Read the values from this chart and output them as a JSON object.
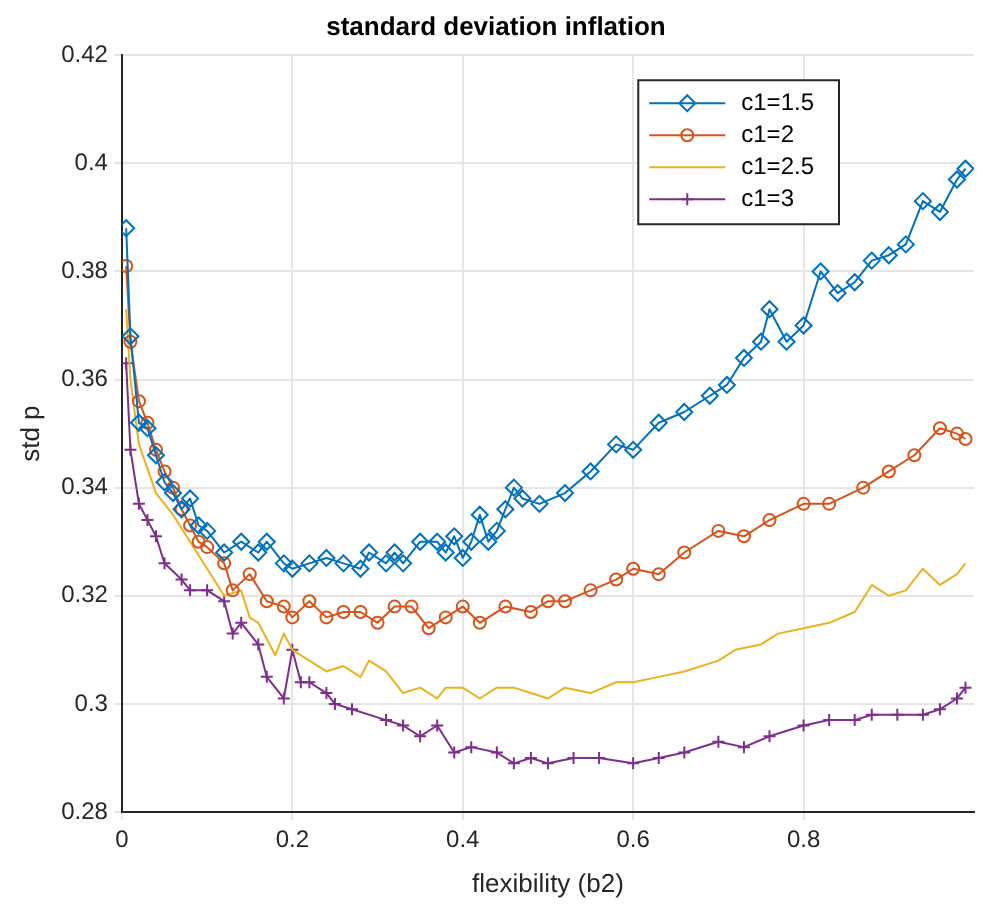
{
  "chart_data": {
    "type": "line",
    "title": "standard deviation inflation",
    "xlabel": "flexibility (b2)",
    "ylabel": "std p",
    "xlim": [
      0,
      1
    ],
    "xticks": [
      0,
      0.2,
      0.4,
      0.6,
      0.8
    ],
    "ylim": [
      0.28,
      0.42
    ],
    "yticks": [
      0.28,
      0.3,
      0.32,
      0.34,
      0.36,
      0.38,
      0.4,
      0.42
    ],
    "grid": true,
    "legend": "top right",
    "series": [
      {
        "name": "c1=1.5",
        "color": "#0072bd",
        "marker": "diamond",
        "x": [
          0.005,
          0.01,
          0.02,
          0.03,
          0.04,
          0.05,
          0.06,
          0.07,
          0.08,
          0.09,
          0.1,
          0.12,
          0.14,
          0.16,
          0.17,
          0.19,
          0.2,
          0.22,
          0.24,
          0.26,
          0.28,
          0.29,
          0.31,
          0.32,
          0.33,
          0.35,
          0.37,
          0.38,
          0.39,
          0.4,
          0.41,
          0.42,
          0.43,
          0.44,
          0.45,
          0.46,
          0.47,
          0.49,
          0.52,
          0.55,
          0.58,
          0.6,
          0.63,
          0.66,
          0.69,
          0.71,
          0.73,
          0.75,
          0.76,
          0.78,
          0.8,
          0.82,
          0.84,
          0.86,
          0.88,
          0.9,
          0.92,
          0.94,
          0.96,
          0.98,
          0.99
        ],
        "values": [
          0.388,
          0.368,
          0.352,
          0.351,
          0.346,
          0.341,
          0.339,
          0.336,
          0.338,
          0.333,
          0.332,
          0.328,
          0.33,
          0.328,
          0.33,
          0.326,
          0.325,
          0.326,
          0.327,
          0.326,
          0.325,
          0.328,
          0.326,
          0.328,
          0.326,
          0.33,
          0.33,
          0.328,
          0.331,
          0.327,
          0.33,
          0.335,
          0.33,
          0.332,
          0.336,
          0.34,
          0.338,
          0.337,
          0.339,
          0.343,
          0.348,
          0.347,
          0.352,
          0.354,
          0.357,
          0.359,
          0.364,
          0.367,
          0.373,
          0.367,
          0.37,
          0.38,
          0.376,
          0.378,
          0.382,
          0.383,
          0.385,
          0.393,
          0.391,
          0.397,
          0.399
        ]
      },
      {
        "name": "c1=2",
        "color": "#d95319",
        "marker": "circle",
        "x": [
          0.005,
          0.01,
          0.02,
          0.03,
          0.04,
          0.05,
          0.06,
          0.07,
          0.08,
          0.09,
          0.1,
          0.12,
          0.13,
          0.15,
          0.17,
          0.19,
          0.2,
          0.22,
          0.24,
          0.26,
          0.28,
          0.3,
          0.32,
          0.34,
          0.36,
          0.38,
          0.4,
          0.42,
          0.45,
          0.48,
          0.5,
          0.52,
          0.55,
          0.58,
          0.6,
          0.63,
          0.66,
          0.7,
          0.73,
          0.76,
          0.8,
          0.83,
          0.87,
          0.9,
          0.93,
          0.96,
          0.98,
          0.99
        ],
        "values": [
          0.381,
          0.367,
          0.356,
          0.352,
          0.347,
          0.343,
          0.34,
          0.336,
          0.333,
          0.33,
          0.329,
          0.326,
          0.321,
          0.324,
          0.319,
          0.318,
          0.316,
          0.319,
          0.316,
          0.317,
          0.317,
          0.315,
          0.318,
          0.318,
          0.314,
          0.316,
          0.318,
          0.315,
          0.318,
          0.317,
          0.319,
          0.319,
          0.321,
          0.323,
          0.325,
          0.324,
          0.328,
          0.332,
          0.331,
          0.334,
          0.337,
          0.337,
          0.34,
          0.343,
          0.346,
          0.351,
          0.35,
          0.349
        ]
      },
      {
        "name": "c1=2.5",
        "color": "#edb120",
        "marker": "none",
        "x": [
          0.005,
          0.01,
          0.02,
          0.04,
          0.06,
          0.08,
          0.1,
          0.12,
          0.14,
          0.15,
          0.16,
          0.18,
          0.19,
          0.2,
          0.22,
          0.24,
          0.26,
          0.28,
          0.29,
          0.31,
          0.33,
          0.35,
          0.37,
          0.38,
          0.4,
          0.42,
          0.44,
          0.46,
          0.48,
          0.5,
          0.52,
          0.55,
          0.58,
          0.6,
          0.63,
          0.66,
          0.7,
          0.72,
          0.75,
          0.77,
          0.8,
          0.83,
          0.86,
          0.88,
          0.9,
          0.92,
          0.94,
          0.96,
          0.98,
          0.99
        ],
        "values": [
          0.373,
          0.36,
          0.348,
          0.339,
          0.335,
          0.33,
          0.325,
          0.32,
          0.321,
          0.316,
          0.315,
          0.309,
          0.313,
          0.31,
          0.308,
          0.306,
          0.307,
          0.305,
          0.308,
          0.306,
          0.302,
          0.303,
          0.301,
          0.303,
          0.303,
          0.301,
          0.303,
          0.303,
          0.302,
          0.301,
          0.303,
          0.302,
          0.304,
          0.304,
          0.305,
          0.306,
          0.308,
          0.31,
          0.311,
          0.313,
          0.314,
          0.315,
          0.317,
          0.322,
          0.32,
          0.321,
          0.325,
          0.322,
          0.324,
          0.326
        ]
      },
      {
        "name": "c1=3",
        "color": "#7e2f8e",
        "marker": "cross",
        "x": [
          0.005,
          0.01,
          0.02,
          0.03,
          0.04,
          0.05,
          0.07,
          0.08,
          0.1,
          0.12,
          0.13,
          0.14,
          0.16,
          0.17,
          0.19,
          0.2,
          0.21,
          0.22,
          0.24,
          0.25,
          0.27,
          0.31,
          0.33,
          0.35,
          0.37,
          0.39,
          0.41,
          0.44,
          0.46,
          0.48,
          0.5,
          0.53,
          0.56,
          0.6,
          0.63,
          0.66,
          0.7,
          0.73,
          0.76,
          0.8,
          0.83,
          0.86,
          0.88,
          0.91,
          0.94,
          0.96,
          0.98,
          0.99
        ],
        "values": [
          0.363,
          0.347,
          0.337,
          0.334,
          0.331,
          0.326,
          0.323,
          0.321,
          0.321,
          0.319,
          0.313,
          0.315,
          0.311,
          0.305,
          0.301,
          0.31,
          0.304,
          0.304,
          0.302,
          0.3,
          0.299,
          0.297,
          0.296,
          0.294,
          0.296,
          0.291,
          0.292,
          0.291,
          0.289,
          0.29,
          0.289,
          0.29,
          0.29,
          0.289,
          0.29,
          0.291,
          0.293,
          0.292,
          0.294,
          0.296,
          0.297,
          0.297,
          0.298,
          0.298,
          0.298,
          0.299,
          0.301,
          0.303
        ]
      }
    ]
  }
}
